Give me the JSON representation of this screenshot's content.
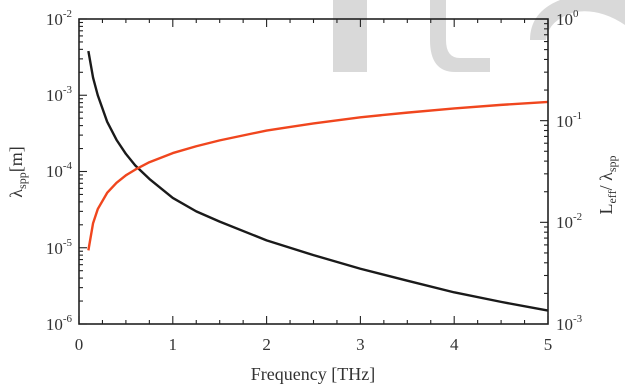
{
  "chart_data": {
    "type": "line",
    "xlabel": "Frequency [THz]",
    "xlim": [
      0,
      5
    ],
    "x_ticks": [
      "0",
      "1",
      "2",
      "3",
      "4",
      "5"
    ],
    "y_left": {
      "label_main": "λ",
      "label_sub": "spp",
      "label_suffix": "[m]",
      "scale": "log",
      "ylim": [
        1e-06,
        0.01
      ],
      "ticks": [
        {
          "value": 0.01,
          "base": "10",
          "exp": "-2"
        },
        {
          "value": 0.001,
          "base": "10",
          "exp": "-3"
        },
        {
          "value": 0.0001,
          "base": "10",
          "exp": "-4"
        },
        {
          "value": 1e-05,
          "base": "10",
          "exp": "-5"
        },
        {
          "value": 1e-06,
          "base": "10",
          "exp": "-6"
        }
      ]
    },
    "y_right": {
      "label_main": "L",
      "label_sub1": "eff",
      "label_mid": "/ λ",
      "label_sub2": "spp",
      "scale": "log",
      "ylim": [
        0.001,
        1
      ],
      "ticks": [
        {
          "value": 1,
          "base": "10",
          "exp": "0"
        },
        {
          "value": 0.1,
          "base": "10",
          "exp": "-1"
        },
        {
          "value": 0.01,
          "base": "10",
          "exp": "-2"
        },
        {
          "value": 0.001,
          "base": "10",
          "exp": "-3"
        }
      ]
    },
    "series": [
      {
        "axis": "left",
        "color": "#1a1a1a",
        "x": [
          0.1,
          0.15,
          0.2,
          0.3,
          0.4,
          0.5,
          0.6,
          0.75,
          1.0,
          1.25,
          1.5,
          2.0,
          2.5,
          3.0,
          3.5,
          4.0,
          4.5,
          5.0
        ],
        "y": [
          0.0038,
          0.0017,
          0.001,
          0.00045,
          0.00026,
          0.00017,
          0.00012,
          8e-05,
          4.5e-05,
          3e-05,
          2.2e-05,
          1.25e-05,
          8e-06,
          5.3e-06,
          3.7e-06,
          2.6e-06,
          1.95e-06,
          1.5e-06
        ]
      },
      {
        "axis": "right",
        "color": "#f0461e",
        "x": [
          0.1,
          0.15,
          0.2,
          0.3,
          0.4,
          0.5,
          0.6,
          0.75,
          1.0,
          1.25,
          1.5,
          2.0,
          2.5,
          3.0,
          3.5,
          4.0,
          4.5,
          5.0
        ],
        "y": [
          0.0053,
          0.0098,
          0.0135,
          0.0195,
          0.0245,
          0.029,
          0.033,
          0.039,
          0.048,
          0.056,
          0.064,
          0.08,
          0.094,
          0.108,
          0.12,
          0.132,
          0.143,
          0.153
        ]
      }
    ]
  }
}
